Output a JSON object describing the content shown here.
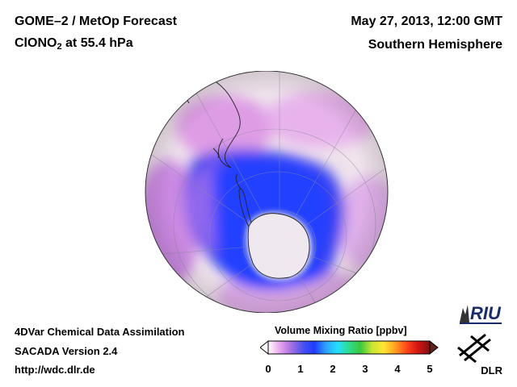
{
  "header": {
    "title": "GOME–2 / MetOp Forecast",
    "species_main": "ClONO",
    "species_sub": "2",
    "species_level": " at 55.4 hPa",
    "date": "May 27, 2013, 12:00 GMT",
    "hemisphere": "Southern Hemisphere"
  },
  "footer": {
    "line1": "4DVar Chemical Data Assimilation",
    "line2": "SACADA Version 2.4",
    "line3": "http://wdc.dlr.de"
  },
  "colorbar": {
    "title": "Volume Mixing Ratio [ppbv]",
    "ticks": [
      "0",
      "1",
      "2",
      "3",
      "4",
      "5"
    ],
    "range": [
      0,
      5
    ],
    "colors": [
      "#ffffff",
      "#e9a6ee",
      "#a76fe0",
      "#4a52f0",
      "#1e3cff",
      "#2ea0ff",
      "#22e0ff",
      "#2edc8c",
      "#3cc83c",
      "#c8e632",
      "#ffe632",
      "#ffa020",
      "#ff4618",
      "#d21414",
      "#801010"
    ]
  },
  "logos": {
    "riu": "RIU",
    "dlr": "DLR"
  }
}
